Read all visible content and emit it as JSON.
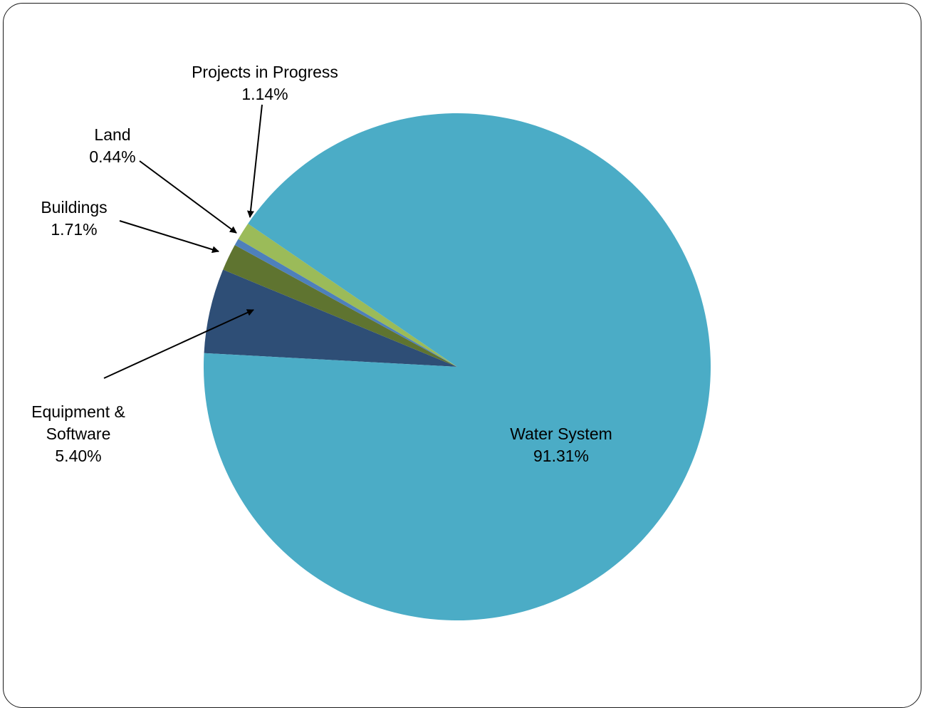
{
  "chart_data": {
    "type": "pie",
    "title": "",
    "start_angle_deg": 176.9,
    "direction": "clockwise",
    "slices": [
      {
        "label": "Equipment & Software",
        "label_lines": [
          "Equipment &",
          "Software"
        ],
        "value": 5.4,
        "display": "5.40%",
        "color": "#2E4E76"
      },
      {
        "label": "Buildings",
        "label_lines": [
          "Buildings"
        ],
        "value": 1.71,
        "display": "1.71%",
        "color": "#5F7430"
      },
      {
        "label": "Land",
        "label_lines": [
          "Land"
        ],
        "value": 0.44,
        "display": "0.44%",
        "color": "#4E80BB"
      },
      {
        "label": "Projects in Progress",
        "label_lines": [
          "Projects in Progress"
        ],
        "value": 1.14,
        "display": "1.14%",
        "color": "#9BBB59"
      },
      {
        "label": "Water System",
        "label_lines": [
          "Water System"
        ],
        "value": 91.31,
        "display": "91.31%",
        "color": "#4BACC6"
      }
    ]
  }
}
